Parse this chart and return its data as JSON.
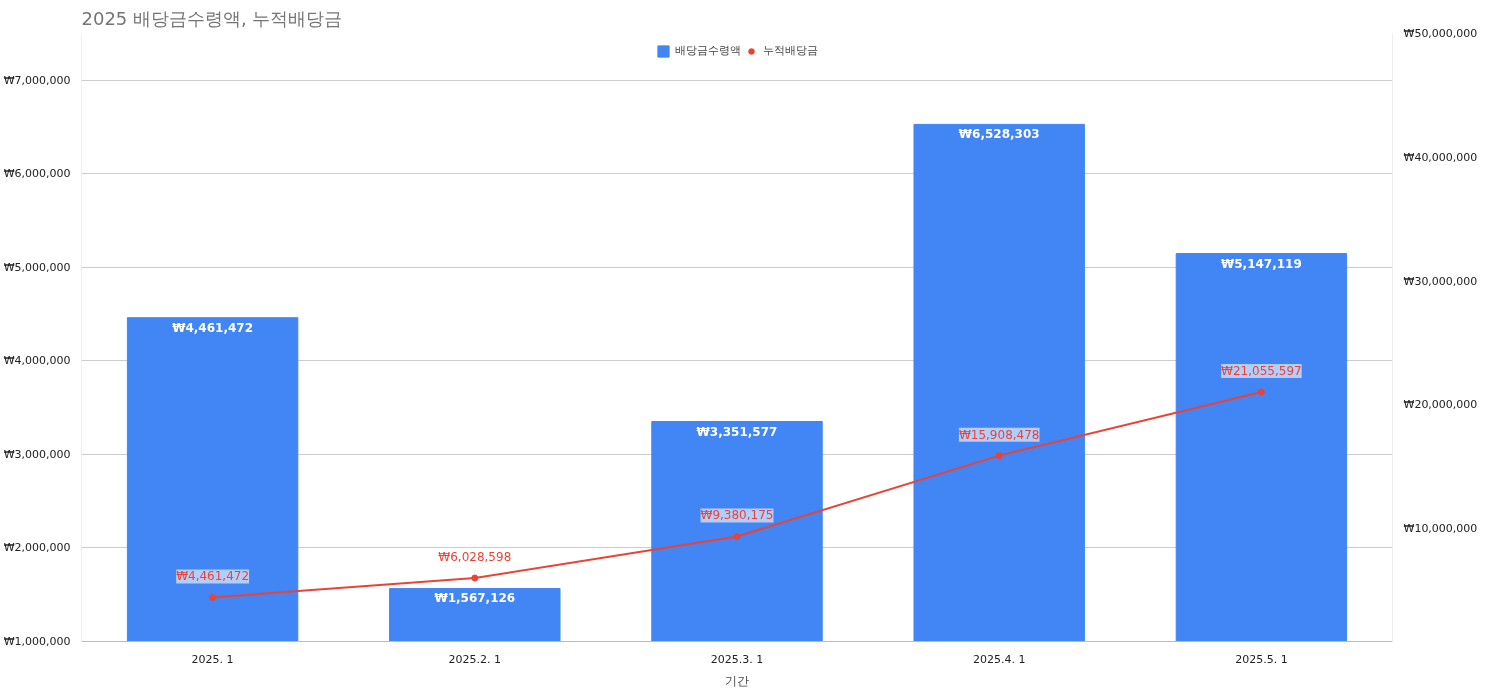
{
  "chart_data": {
    "type": "bar",
    "title": "2025 배당금수령액, 누적배당금",
    "xlabel": "기간",
    "categories": [
      "2025. 1",
      "2025.2. 1",
      "2025.3. 1",
      "2025.4. 1",
      "2025.5. 1"
    ],
    "series": [
      {
        "name": "배당금수령액",
        "color": "#4285f4",
        "values": [
          4461472,
          1567126,
          3351577,
          6528303,
          5147119
        ],
        "value_labels": [
          "₩4,461,472",
          "₩1,567,126",
          "₩3,351,577",
          "₩6,528,303",
          "₩5,147,119"
        ]
      },
      {
        "name": "누적배당금",
        "type": "line",
        "axis": "y2",
        "color": "#ea4335",
        "marker": "circle",
        "values": [
          4461472,
          6028598,
          9380175,
          15908478,
          21055597
        ],
        "value_labels": [
          "₩4,461,472",
          "₩6,028,598",
          "₩9,380,175",
          "₩15,908,478",
          "₩21,055,597"
        ]
      }
    ],
    "ylim": [
      1000000,
      7500000
    ],
    "yticks": [
      {
        "value": 1000000,
        "label": "₩1,000,000"
      },
      {
        "value": 2000000,
        "label": "₩2,000,000"
      },
      {
        "value": 3000000,
        "label": "₩3,000,000"
      },
      {
        "value": 4000000,
        "label": "₩4,000,000"
      },
      {
        "value": 5000000,
        "label": "₩5,000,000"
      },
      {
        "value": 6000000,
        "label": "₩6,000,000"
      },
      {
        "value": 7000000,
        "label": "₩7,000,000"
      }
    ],
    "y2lim": [
      900000,
      50000000
    ],
    "y2ticks": [
      {
        "value": 10000000,
        "label": "₩10,000,000"
      },
      {
        "value": 20000000,
        "label": "₩20,000,000"
      },
      {
        "value": 30000000,
        "label": "₩30,000,000"
      },
      {
        "value": 40000000,
        "label": "₩40,000,000"
      },
      {
        "value": 50000000,
        "label": "₩50,000,000"
      }
    ],
    "grid": "y",
    "legend": "top"
  }
}
